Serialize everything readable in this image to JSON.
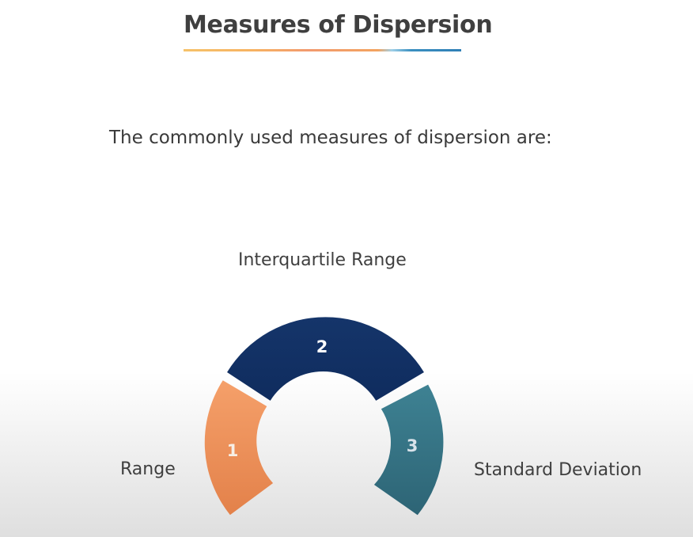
{
  "slide": {
    "title": "Measures of Dispersion",
    "intro": "The commonly used measures of dispersion are:"
  },
  "diagram": {
    "segments": [
      {
        "number": "1",
        "label": "Range",
        "color_top": "#f5a06a",
        "color_bottom": "#e3814a"
      },
      {
        "number": "2",
        "label": "Interquartile Range",
        "color_top": "#15356a",
        "color_bottom": "#0f2c5e"
      },
      {
        "number": "3",
        "label": "Standard Deviation",
        "color_top": "#3e8293",
        "color_bottom": "#2d6475"
      }
    ]
  },
  "colors": {
    "title_text": "#3f3f3f",
    "number_text_light": "#ffffff",
    "number_text_dim": "#d9e3ea"
  }
}
